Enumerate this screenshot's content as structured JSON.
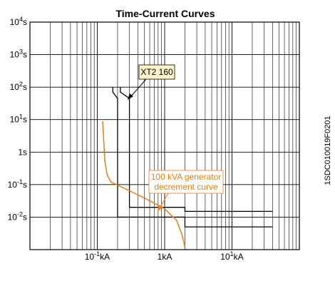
{
  "chart_data": {
    "type": "line",
    "title": "Time-Current Curves",
    "x_scale": "log",
    "y_scale": "log",
    "xlim": [
      0.01,
      100
    ],
    "ylim": [
      0.001,
      10000
    ],
    "grid": true,
    "x_tick_labels": [
      {
        "value": 0.1,
        "base": "10",
        "exp": "-1",
        "unit": "kA"
      },
      {
        "value": 1,
        "base": "1kA",
        "exp": "",
        "unit": ""
      },
      {
        "value": 10,
        "base": "10",
        "exp": "1",
        "unit": "kA"
      }
    ],
    "y_tick_labels": [
      {
        "value": 10000,
        "base": "10",
        "exp": "4",
        "unit": "s"
      },
      {
        "value": 1000,
        "base": "10",
        "exp": "3",
        "unit": "s"
      },
      {
        "value": 100,
        "base": "10",
        "exp": "2",
        "unit": "s"
      },
      {
        "value": 10,
        "base": "10",
        "exp": "1",
        "unit": "s"
      },
      {
        "value": 1,
        "base": "1s",
        "exp": "",
        "unit": ""
      },
      {
        "value": 0.1,
        "base": "10",
        "exp": "-1",
        "unit": "s"
      },
      {
        "value": 0.01,
        "base": "10",
        "exp": "-2",
        "unit": "s"
      }
    ],
    "series": [
      {
        "color": "#000000",
        "points": [
          [
            0.17,
            100
          ],
          [
            0.17,
            70
          ],
          [
            0.2,
            45
          ],
          [
            0.2,
            0.01
          ],
          [
            2.0,
            0.01
          ],
          [
            2.0,
            0.005
          ],
          [
            40,
            0.005
          ]
        ]
      },
      {
        "color": "#000000",
        "points": [
          [
            0.22,
            100
          ],
          [
            0.22,
            70
          ],
          [
            0.3,
            45
          ],
          [
            0.3,
            0.02
          ],
          [
            2.0,
            0.02
          ],
          [
            2.0,
            0.015
          ],
          [
            40,
            0.015
          ]
        ]
      },
      {
        "color": "#ee7d12",
        "points": [
          [
            0.12,
            9
          ],
          [
            0.125,
            2
          ],
          [
            0.13,
            0.5
          ],
          [
            0.14,
            0.2
          ],
          [
            0.16,
            0.12
          ],
          [
            0.3,
            0.065
          ],
          [
            0.6,
            0.032
          ],
          [
            1.0,
            0.018
          ],
          [
            1.5,
            0.008
          ],
          [
            1.8,
            0.003
          ],
          [
            2.0,
            0.0012
          ]
        ]
      }
    ],
    "annotations": [
      {
        "text": "XT2 160"
      },
      {
        "lines": [
          "100 kVA generator",
          "decrement curve"
        ]
      }
    ],
    "side_code": "1SDC010019F0201",
    "colors": {
      "curve": "#000000",
      "generator": "#ee7d12",
      "callout_fill": "#fdf2c8",
      "grid": "#000000"
    }
  }
}
